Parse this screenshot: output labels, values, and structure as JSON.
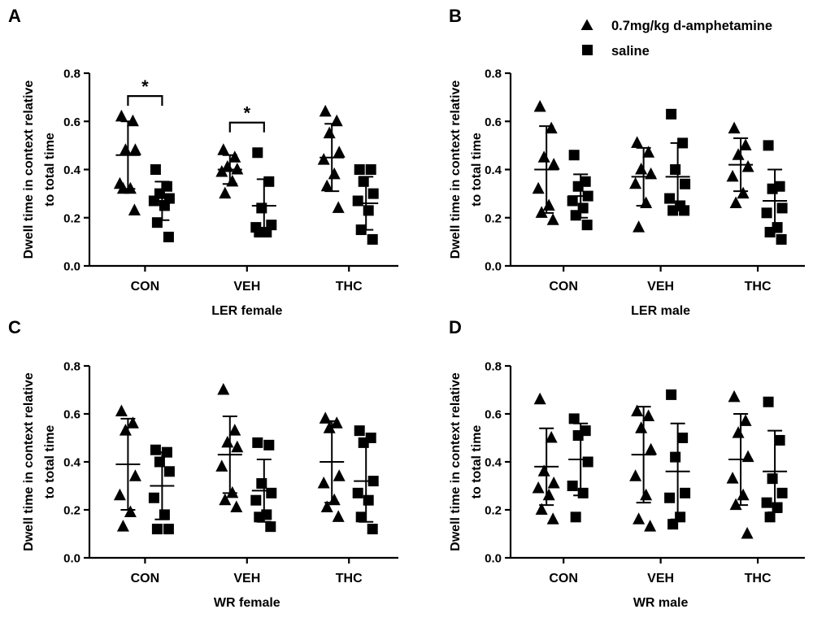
{
  "legend": {
    "items": [
      {
        "symbol": "triangle",
        "label": "0.7mg/kg d-amphetamine"
      },
      {
        "symbol": "square",
        "label": "saline"
      }
    ]
  },
  "chart_data": [
    {
      "panel_label": "A",
      "type": "scatter",
      "title": "LER female",
      "xlabel": "LER female",
      "ylabel": "Dwell time in context relative to total time",
      "ylim": [
        0,
        0.8
      ],
      "yticks": [
        "0.0",
        "0.2",
        "0.4",
        "0.6",
        "0.8"
      ],
      "categories": [
        "CON",
        "VEH",
        "THC"
      ],
      "series": [
        {
          "name": "0.7mg/kg d-amphetamine",
          "marker": "triangle",
          "points": [
            [
              0.62,
              0.6,
              0.48,
              0.48,
              0.34,
              0.32,
              0.32,
              0.23
            ],
            [
              0.48,
              0.45,
              0.41,
              0.4,
              0.39,
              0.35,
              0.3
            ],
            [
              0.64,
              0.6,
              0.55,
              0.47,
              0.44,
              0.38,
              0.33,
              0.24
            ]
          ],
          "mean": [
            0.46,
            0.4,
            0.45
          ],
          "sd": [
            0.14,
            0.06,
            0.14
          ]
        },
        {
          "name": "saline",
          "marker": "square",
          "points": [
            [
              0.4,
              0.33,
              0.3,
              0.28,
              0.27,
              0.25,
              0.18,
              0.12
            ],
            [
              0.47,
              0.35,
              0.24,
              0.17,
              0.16,
              0.14,
              0.14
            ],
            [
              0.4,
              0.4,
              0.35,
              0.3,
              0.27,
              0.23,
              0.15,
              0.11
            ]
          ],
          "mean": [
            0.27,
            0.25,
            0.26
          ],
          "sd": [
            0.08,
            0.11,
            0.11
          ]
        }
      ],
      "annotations": [
        {
          "text": "*",
          "between": "CON"
        },
        {
          "text": "*",
          "between": "VEH"
        }
      ]
    },
    {
      "panel_label": "B",
      "type": "scatter",
      "title": "LER male",
      "xlabel": "LER male",
      "ylabel": "Dwell time in context relative to total time",
      "ylim": [
        0,
        0.8
      ],
      "yticks": [
        "0.0",
        "0.2",
        "0.4",
        "0.6",
        "0.8"
      ],
      "categories": [
        "CON",
        "VEH",
        "THC"
      ],
      "series": [
        {
          "name": "0.7mg/kg d-amphetamine",
          "marker": "triangle",
          "points": [
            [
              0.66,
              0.57,
              0.45,
              0.42,
              0.32,
              0.25,
              0.22,
              0.19
            ],
            [
              0.51,
              0.47,
              0.4,
              0.38,
              0.34,
              0.26,
              0.16
            ],
            [
              0.57,
              0.5,
              0.46,
              0.41,
              0.37,
              0.3,
              0.26
            ]
          ],
          "mean": [
            0.4,
            0.37,
            0.42
          ],
          "sd": [
            0.18,
            0.12,
            0.11
          ]
        },
        {
          "name": "saline",
          "marker": "square",
          "points": [
            [
              0.46,
              0.35,
              0.33,
              0.29,
              0.27,
              0.24,
              0.21,
              0.17
            ],
            [
              0.63,
              0.51,
              0.4,
              0.34,
              0.28,
              0.25,
              0.23,
              0.23
            ],
            [
              0.5,
              0.33,
              0.32,
              0.24,
              0.22,
              0.16,
              0.14,
              0.11
            ]
          ],
          "mean": [
            0.29,
            0.37,
            0.27
          ],
          "sd": [
            0.09,
            0.14,
            0.13
          ]
        }
      ]
    },
    {
      "panel_label": "C",
      "type": "scatter",
      "title": "WR female",
      "xlabel": "WR female",
      "ylabel": "Dwell time in context relative to total time",
      "ylim": [
        0,
        0.8
      ],
      "yticks": [
        "0.0",
        "0.2",
        "0.4",
        "0.6",
        "0.8"
      ],
      "categories": [
        "CON",
        "VEH",
        "THC"
      ],
      "series": [
        {
          "name": "0.7mg/kg d-amphetamine",
          "marker": "triangle",
          "points": [
            [
              0.61,
              0.56,
              0.53,
              0.34,
              0.26,
              0.19,
              0.13
            ],
            [
              0.7,
              0.53,
              0.48,
              0.46,
              0.38,
              0.27,
              0.24,
              0.21
            ],
            [
              0.58,
              0.56,
              0.54,
              0.34,
              0.31,
              0.24,
              0.21,
              0.17
            ]
          ],
          "mean": [
            0.39,
            0.43,
            0.4
          ],
          "sd": [
            0.19,
            0.16,
            0.17
          ]
        },
        {
          "name": "saline",
          "marker": "square",
          "points": [
            [
              0.45,
              0.44,
              0.4,
              0.36,
              0.25,
              0.18,
              0.12,
              0.12
            ],
            [
              0.48,
              0.47,
              0.31,
              0.27,
              0.24,
              0.18,
              0.17,
              0.13
            ],
            [
              0.53,
              0.5,
              0.48,
              0.32,
              0.27,
              0.24,
              0.17,
              0.12
            ]
          ],
          "mean": [
            0.3,
            0.28,
            0.32
          ],
          "sd": [
            0.14,
            0.13,
            0.17
          ]
        }
      ]
    },
    {
      "panel_label": "D",
      "type": "scatter",
      "title": "WR male",
      "xlabel": "WR male",
      "ylabel": "Dwell time in context relative to total time",
      "ylim": [
        0,
        0.8
      ],
      "yticks": [
        "0.0",
        "0.2",
        "0.4",
        "0.6",
        "0.8"
      ],
      "categories": [
        "CON",
        "VEH",
        "THC"
      ],
      "series": [
        {
          "name": "0.7mg/kg d-amphetamine",
          "marker": "triangle",
          "points": [
            [
              0.66,
              0.5,
              0.36,
              0.31,
              0.29,
              0.26,
              0.2,
              0.16
            ],
            [
              0.61,
              0.59,
              0.54,
              0.45,
              0.34,
              0.26,
              0.16,
              0.13
            ],
            [
              0.67,
              0.57,
              0.52,
              0.42,
              0.33,
              0.26,
              0.22,
              0.1
            ]
          ],
          "mean": [
            0.38,
            0.43,
            0.41
          ],
          "sd": [
            0.16,
            0.2,
            0.19
          ]
        },
        {
          "name": "saline",
          "marker": "square",
          "points": [
            [
              0.58,
              0.53,
              0.51,
              0.4,
              0.3,
              0.27,
              0.17
            ],
            [
              0.68,
              0.5,
              0.42,
              0.27,
              0.25,
              0.17,
              0.14
            ],
            [
              0.65,
              0.49,
              0.33,
              0.27,
              0.23,
              0.21,
              0.17
            ]
          ],
          "mean": [
            0.41,
            0.36,
            0.36
          ],
          "sd": [
            0.15,
            0.2,
            0.17
          ]
        }
      ]
    }
  ]
}
